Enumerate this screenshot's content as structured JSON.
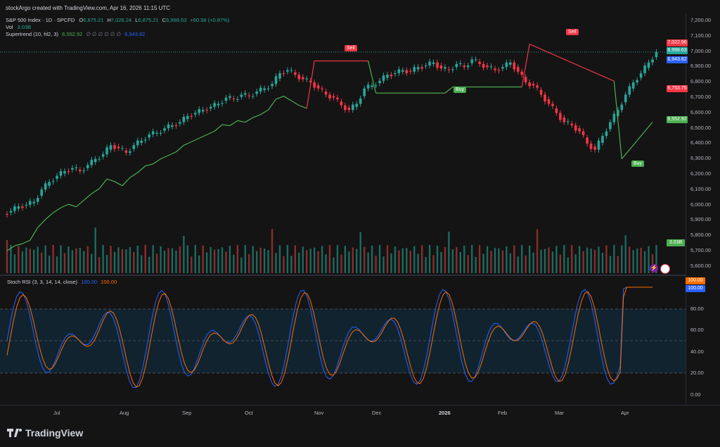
{
  "header": {
    "creator": "stockArgo created with TradingView.com, Apr 16, 2026 11:15 UTC"
  },
  "legend": {
    "symbol": "S&P 500 Index · 1D · SPCFD",
    "o_label": "O",
    "o": "6,875.21",
    "h_label": "H",
    "h": "7,026.24",
    "l_label": "L",
    "l": "6,875.21",
    "c_label": "C",
    "c": "6,998.63",
    "change": "+60.58 (+0.87%)",
    "vol_label": "Vol",
    "vol": "3.03B",
    "st_label": "Supertrend (10, hl2, 3)",
    "st_val1": "6,552.92",
    "st_dots": "∅ ∅ ∅ ∅ ∅ ∅",
    "st_val2": "6,943.82"
  },
  "price_axis": [
    "7,200.00",
    "7,100.00",
    "7,000.00",
    "6,900.00",
    "6,800.00",
    "6,700.00",
    "6,600.00",
    "6,500.00",
    "6,400.00",
    "6,300.00",
    "6,200.00",
    "6,100.00",
    "6,000.00",
    "5,900.00",
    "5,800.00",
    "5,700.00",
    "5,600.00"
  ],
  "price_tags": {
    "red1": "7,022.96",
    "last": "6,998.63",
    "blue": "6,943.82",
    "red2": "6,753.75",
    "green": "6,552.92",
    "vol": "3.03B"
  },
  "rsi": {
    "title": "Stoch RSI (3, 3, 14, 14, close)",
    "k": "100.00",
    "d": "100.00",
    "tag_k": "100.00",
    "tag_d": "100.00",
    "axis": [
      "80.00",
      "60.00",
      "40.00",
      "20.00",
      "0.00"
    ]
  },
  "time_axis": [
    "Jul",
    "Aug",
    "Sep",
    "Oct",
    "Nov",
    "Dec",
    "2026",
    "Feb",
    "Mar",
    "Apr"
  ],
  "signals": {
    "sell": "Sell",
    "buy": "Buy"
  },
  "branding": {
    "logo_text": "TradingView"
  },
  "colors": {
    "up": "#26a69a",
    "down": "#f23645",
    "st_green": "#4caf50",
    "st_red": "#f23645",
    "rsi_k": "#2962ff",
    "rsi_d": "#ff6d00"
  },
  "chart_data": {
    "type": "candlestick",
    "indicators": [
      "Supertrend",
      "Volume",
      "Stoch RSI"
    ],
    "close_series_approx": [
      5960,
      5990,
      6000,
      6020,
      6100,
      6150,
      6190,
      6220,
      6240,
      6220,
      6260,
      6300,
      6330,
      6390,
      6370,
      6340,
      6390,
      6420,
      6460,
      6470,
      6500,
      6520,
      6540,
      6580,
      6600,
      6620,
      6640,
      6660,
      6700,
      6690,
      6720,
      6710,
      6740,
      6760,
      6790,
      6860,
      6880,
      6850,
      6820,
      6800,
      6760,
      6720,
      6700,
      6650,
      6620,
      6660,
      6760,
      6780,
      6810,
      6850,
      6860,
      6880,
      6870,
      6900,
      6910,
      6930,
      6890,
      6880,
      6920,
      6900,
      6950,
      6920,
      6900,
      6880,
      6900,
      6930,
      6870,
      6800,
      6780,
      6720,
      6660,
      6600,
      6540,
      6520,
      6480,
      6400,
      6360,
      6450,
      6540,
      6620,
      6720,
      6800,
      6860,
      6930,
      6998.63
    ]
  }
}
